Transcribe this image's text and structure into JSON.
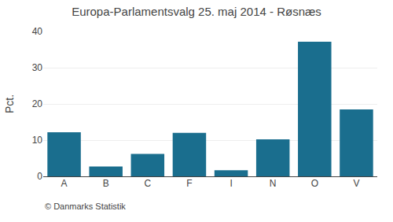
{
  "chart_data": {
    "type": "bar",
    "title": "Europa-Parlamentsvalg 25. maj 2014 - Røsnæs",
    "ylabel": "Pct.",
    "annotations": [
      "© Danmarks Statistik"
    ],
    "categories": [
      "A",
      "B",
      "C",
      "F",
      "I",
      "N",
      "O",
      "V"
    ],
    "values": [
      12.2,
      2.7,
      6.2,
      12.0,
      1.7,
      10.2,
      37.2,
      18.5
    ],
    "color": "#1a6e8e",
    "ylim": [
      0,
      40
    ],
    "yticks": [
      0,
      10,
      20,
      30,
      40
    ],
    "grid": true
  }
}
